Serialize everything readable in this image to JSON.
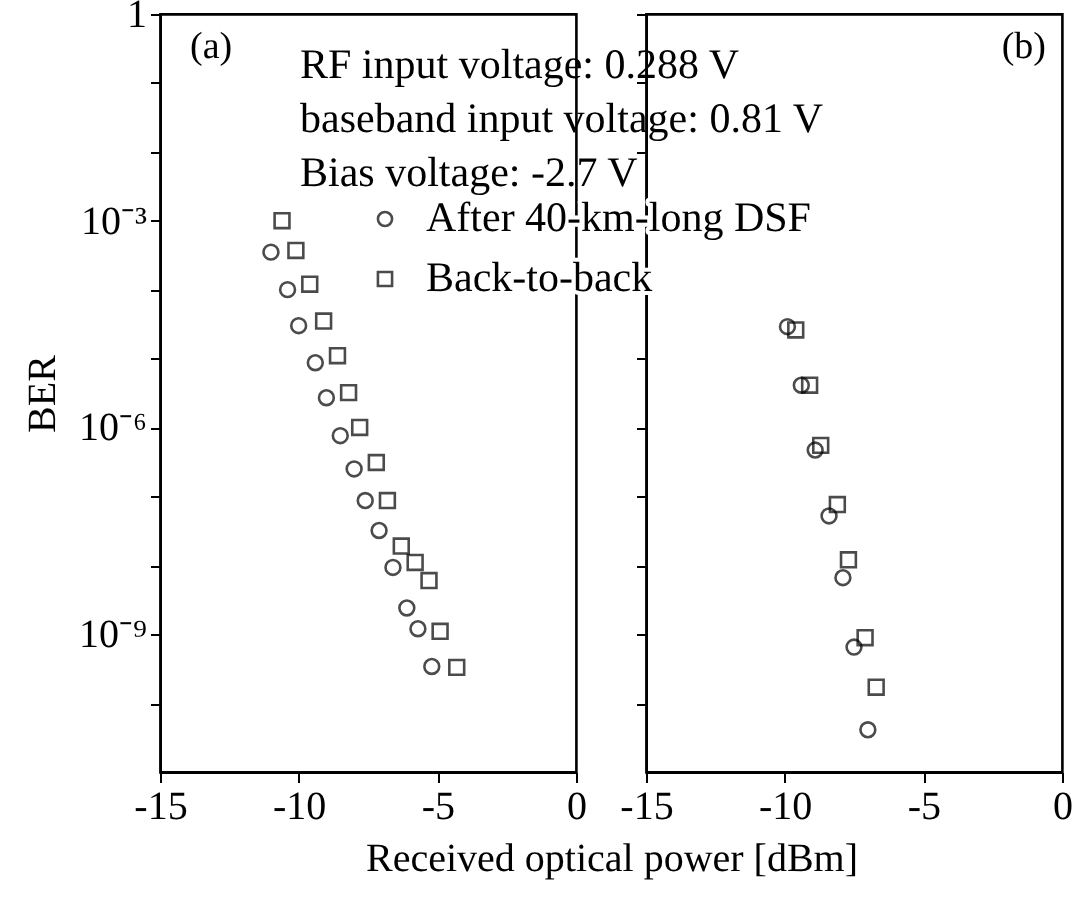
{
  "chart_data": [
    {
      "type": "scatter",
      "xlabel": "Received optical power [dBm]",
      "ylabel": "BER",
      "log": "y",
      "grid": false,
      "legend": "top right",
      "annotations": [
        "(a)",
        "RF input voltage: 0.288 V",
        "baseband input voltage: 0.81 V",
        "Bias voltage: -2.7 V"
      ],
      "xlim": [
        -15,
        0
      ],
      "xticks": [
        -15,
        -10,
        -5,
        0
      ],
      "ylim": [
        1e-11,
        1
      ],
      "yticks": [
        1,
        {
          "value": 0.1,
          "label": null
        },
        {
          "value": 0.01,
          "label": null
        },
        {
          "value": 0.001,
          "label": "10⁻³"
        },
        {
          "value": 0.0001,
          "label": null
        },
        {
          "value": 1e-05,
          "label": null
        },
        {
          "value": 1e-06,
          "label": "10⁻⁶"
        },
        {
          "value": 1e-07,
          "label": null
        },
        {
          "value": 1e-08,
          "label": null
        },
        {
          "value": 1e-09,
          "label": "10⁻⁹"
        },
        {
          "value": 1e-10,
          "label": null
        }
      ],
      "series": [
        {
          "name": "After 40-km-long DSF",
          "color": "#000000",
          "marker": "circle",
          "x": [
            -11.0,
            -10.4,
            -10.0,
            -9.4,
            -9.0,
            -8.5,
            -8.0,
            -7.6,
            -7.1,
            -6.6,
            -6.1,
            -5.7,
            -5.2
          ],
          "values": [
            0.00035,
            0.0001,
            3e-05,
            8.7e-06,
            2.7e-06,
            7.6e-07,
            2.5e-07,
            8.7e-08,
            3.2e-08,
            9.3e-09,
            2.4e-09,
            1.2e-09,
            3.4e-10
          ]
        },
        {
          "name": "Back-to-back",
          "color": "#000000",
          "marker": "square",
          "x": [
            -10.6,
            -10.1,
            -9.6,
            -9.1,
            -8.6,
            -8.2,
            -7.8,
            -7.2,
            -6.8,
            -6.3,
            -5.8,
            -5.3,
            -4.9,
            -4.3
          ],
          "values": [
            0.001,
            0.00037,
            0.00012,
            3.5e-05,
            1.1e-05,
            3.2e-06,
            1e-06,
            3.1e-07,
            8.7e-08,
            1.9e-08,
            1.1e-08,
            6e-09,
            1.1e-09,
            3.3e-10
          ]
        }
      ]
    },
    {
      "type": "scatter",
      "log": "y",
      "grid": false,
      "tick_labels": "x",
      "annotations": [
        "(b)"
      ],
      "xlim": [
        -15,
        0
      ],
      "xticks": [
        -15,
        -10,
        -5,
        0
      ],
      "ylim": [
        1e-11,
        1
      ],
      "yticks": [
        1,
        0.1,
        0.01,
        0.001,
        0.0001,
        1e-05,
        1e-06,
        1e-07,
        1e-08,
        1e-09,
        1e-10
      ],
      "series": [
        {
          "color": "#000000",
          "marker": "circle",
          "x": [
            -9.9,
            -9.4,
            -8.9,
            -8.4,
            -7.9,
            -7.5,
            -7.0
          ],
          "values": [
            2.9e-05,
            4.1e-06,
            4.7e-07,
            5.2e-08,
            6.6e-09,
            6.5e-10,
            4.1e-11
          ]
        },
        {
          "color": "#000000",
          "marker": "square",
          "x": [
            -9.6,
            -9.1,
            -8.7,
            -8.1,
            -7.7,
            -7.1,
            -6.7
          ],
          "values": [
            2.6e-05,
            4.1e-06,
            5.5e-07,
            7.6e-08,
            1.2e-08,
            8.9e-10,
            1.7e-10
          ]
        }
      ]
    }
  ]
}
